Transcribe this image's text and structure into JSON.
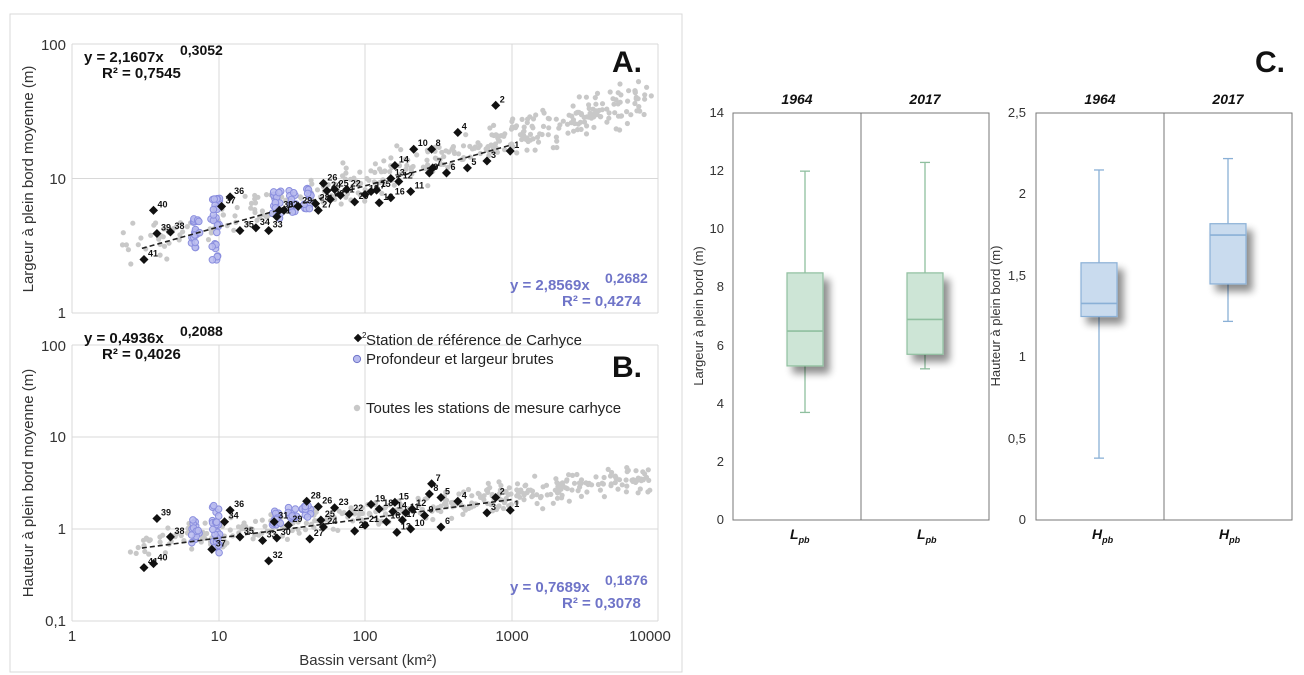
{
  "colors": {
    "reference": "#111111",
    "raw": "#8a8ede",
    "all": "#c8c8c8",
    "text_blue": "#6f74c8",
    "box_L": "#cde5d6",
    "box_L_stroke": "#8fbf9f",
    "box_H": "#c9dbee",
    "box_H_stroke": "#8ab0d6",
    "grid": "#d8d8d8"
  },
  "chart_data": [
    {
      "id": "A",
      "type": "scatter",
      "panel_label": "A.",
      "ylabel": "Largeur à plein bord moyenne (m)",
      "xscale": "log",
      "yscale": "log",
      "xlim": [
        1,
        10000
      ],
      "ylim": [
        1,
        100
      ],
      "yticks": [
        "1",
        "10",
        "100"
      ],
      "grid": true,
      "eq_black": {
        "line1": "y = 2,1607x",
        "exp": "0,3052",
        "line2": "R² = 0,7545"
      },
      "eq_blue": {
        "line1": "y = 2,8569x",
        "exp": "0,2682",
        "line2": "R² = 0,4274"
      },
      "fit": {
        "a": 2.1607,
        "b": 0.3052,
        "x_range": [
          3,
          1000
        ]
      },
      "reference_stations": [
        {
          "x": 780,
          "y": 35,
          "label": "2"
        },
        {
          "x": 980,
          "y": 16,
          "label": "1"
        },
        {
          "x": 680,
          "y": 13.5,
          "label": "3"
        },
        {
          "x": 430,
          "y": 22,
          "label": "4"
        },
        {
          "x": 500,
          "y": 12,
          "label": "5"
        },
        {
          "x": 360,
          "y": 11,
          "label": "6"
        },
        {
          "x": 290,
          "y": 12,
          "label": "7"
        },
        {
          "x": 285,
          "y": 16.5,
          "label": "8"
        },
        {
          "x": 275,
          "y": 11,
          "label": "9"
        },
        {
          "x": 215,
          "y": 16.5,
          "label": "10"
        },
        {
          "x": 205,
          "y": 8,
          "label": "11"
        },
        {
          "x": 170,
          "y": 9.5,
          "label": "12"
        },
        {
          "x": 150,
          "y": 10,
          "label": "13"
        },
        {
          "x": 160,
          "y": 12.5,
          "label": "14"
        },
        {
          "x": 120,
          "y": 8.2,
          "label": "15"
        },
        {
          "x": 150,
          "y": 7.2,
          "label": "16"
        },
        {
          "x": 110,
          "y": 8,
          "label": "17"
        },
        {
          "x": 125,
          "y": 6.6,
          "label": "18"
        },
        {
          "x": 100,
          "y": 7.6,
          "label": "19"
        },
        {
          "x": 85,
          "y": 6.7,
          "label": "20"
        },
        {
          "x": 68,
          "y": 7.5,
          "label": "21"
        },
        {
          "x": 75,
          "y": 8.3,
          "label": "22"
        },
        {
          "x": 58,
          "y": 7,
          "label": "23"
        },
        {
          "x": 55,
          "y": 8.1,
          "label": "24"
        },
        {
          "x": 62,
          "y": 8.3,
          "label": "25"
        },
        {
          "x": 52,
          "y": 9.2,
          "label": "26"
        },
        {
          "x": 48,
          "y": 5.8,
          "label": "27"
        },
        {
          "x": 46,
          "y": 6.5,
          "label": "28"
        },
        {
          "x": 35,
          "y": 6.2,
          "label": "29"
        },
        {
          "x": 26,
          "y": 5.8,
          "label": "30"
        },
        {
          "x": 25,
          "y": 5.2,
          "label": "31"
        },
        {
          "x": 28,
          "y": 5.8,
          "label": "32"
        },
        {
          "x": 22,
          "y": 4.1,
          "label": "33"
        },
        {
          "x": 18,
          "y": 4.3,
          "label": "34"
        },
        {
          "x": 14,
          "y": 4.1,
          "label": "35"
        },
        {
          "x": 12,
          "y": 7.3,
          "label": "36"
        },
        {
          "x": 10.5,
          "y": 6.2,
          "label": "37"
        },
        {
          "x": 4.7,
          "y": 4.0,
          "label": "38"
        },
        {
          "x": 3.8,
          "y": 3.9,
          "label": "39"
        },
        {
          "x": 3.6,
          "y": 5.8,
          "label": "40"
        },
        {
          "x": 3.1,
          "y": 2.5,
          "label": "41"
        }
      ]
    },
    {
      "id": "B",
      "type": "scatter",
      "panel_label": "B.",
      "xlabel": "Bassin versant (km²)",
      "ylabel": "Hauteur à plein bord moyenne (m)",
      "xscale": "log",
      "yscale": "log",
      "xlim": [
        1,
        10000
      ],
      "ylim": [
        0.1,
        100
      ],
      "xticks": [
        "1",
        "10",
        "100",
        "1000",
        "10000"
      ],
      "yticks": [
        "0,1",
        "1",
        "10",
        "100"
      ],
      "grid": true,
      "eq_black": {
        "line1": "y = 0,4936x",
        "exp": "0,2088",
        "line2": "R² = 0,4026"
      },
      "eq_blue": {
        "line1": "y = 0,7689x",
        "exp": "0,1876",
        "line2": "R² = 0,3078"
      },
      "fit": {
        "a": 0.4936,
        "b": 0.2088,
        "x_range": [
          3,
          1000
        ]
      },
      "legend": [
        {
          "key": "reference",
          "label": "Station de référence de Carhyce",
          "sub": "2"
        },
        {
          "key": "raw",
          "label": "Profondeur et largeur brutes"
        },
        {
          "key": "all",
          "label": "Toutes les stations de mesure carhyce"
        }
      ],
      "legend_position": "top-right",
      "reference_stations": [
        {
          "x": 980,
          "y": 1.6,
          "label": "1"
        },
        {
          "x": 780,
          "y": 2.2,
          "label": "2"
        },
        {
          "x": 680,
          "y": 1.5,
          "label": "3"
        },
        {
          "x": 430,
          "y": 2.0,
          "label": "4"
        },
        {
          "x": 330,
          "y": 2.2,
          "label": "5"
        },
        {
          "x": 330,
          "y": 1.05,
          "label": "6"
        },
        {
          "x": 285,
          "y": 3.1,
          "label": "7"
        },
        {
          "x": 275,
          "y": 2.4,
          "label": "8"
        },
        {
          "x": 255,
          "y": 1.4,
          "label": "9"
        },
        {
          "x": 205,
          "y": 1.0,
          "label": "10"
        },
        {
          "x": 190,
          "y": 1.5,
          "label": "11"
        },
        {
          "x": 210,
          "y": 1.65,
          "label": "12"
        },
        {
          "x": 165,
          "y": 0.92,
          "label": "13"
        },
        {
          "x": 155,
          "y": 1.55,
          "label": "14"
        },
        {
          "x": 160,
          "y": 1.95,
          "label": "15"
        },
        {
          "x": 140,
          "y": 1.2,
          "label": "16"
        },
        {
          "x": 180,
          "y": 1.25,
          "label": "17"
        },
        {
          "x": 125,
          "y": 1.65,
          "label": "18"
        },
        {
          "x": 110,
          "y": 1.85,
          "label": "19"
        },
        {
          "x": 85,
          "y": 0.95,
          "label": "20"
        },
        {
          "x": 100,
          "y": 1.1,
          "label": "21"
        },
        {
          "x": 78,
          "y": 1.45,
          "label": "22"
        },
        {
          "x": 62,
          "y": 1.7,
          "label": "23"
        },
        {
          "x": 52,
          "y": 1.05,
          "label": "24"
        },
        {
          "x": 50,
          "y": 1.25,
          "label": "25"
        },
        {
          "x": 48,
          "y": 1.75,
          "label": "26"
        },
        {
          "x": 42,
          "y": 0.78,
          "label": "27"
        },
        {
          "x": 40,
          "y": 2.0,
          "label": "28"
        },
        {
          "x": 30,
          "y": 1.1,
          "label": "29"
        },
        {
          "x": 25,
          "y": 0.8,
          "label": "30"
        },
        {
          "x": 24,
          "y": 1.2,
          "label": "31"
        },
        {
          "x": 22,
          "y": 0.45,
          "label": "32"
        },
        {
          "x": 20,
          "y": 0.75,
          "label": "33"
        },
        {
          "x": 11,
          "y": 1.2,
          "label": "34"
        },
        {
          "x": 14,
          "y": 0.82,
          "label": "35"
        },
        {
          "x": 12,
          "y": 1.6,
          "label": "36"
        },
        {
          "x": 9,
          "y": 0.6,
          "label": "37"
        },
        {
          "x": 4.7,
          "y": 0.82,
          "label": "38"
        },
        {
          "x": 3.8,
          "y": 1.3,
          "label": "39"
        },
        {
          "x": 3.6,
          "y": 0.42,
          "label": "40"
        },
        {
          "x": 3.1,
          "y": 0.38,
          "label": "41"
        }
      ]
    },
    {
      "id": "C1",
      "type": "box",
      "panel_label": "C.",
      "ylabel": "Largeur à plein bord (m)",
      "ylim": [
        0,
        14
      ],
      "yticks": [
        "0",
        "2",
        "4",
        "6",
        "8",
        "10",
        "12",
        "14"
      ],
      "groups": [
        {
          "title": "1964",
          "x_main": "L",
          "x_sub": "pb",
          "min": 3.7,
          "q1": 5.3,
          "median": 6.5,
          "q3": 8.5,
          "max": 12.0
        },
        {
          "title": "2017",
          "x_main": "L",
          "x_sub": "pb",
          "min": 5.2,
          "q1": 5.7,
          "median": 6.9,
          "q3": 8.5,
          "max": 12.3
        }
      ]
    },
    {
      "id": "C2",
      "type": "box",
      "ylabel": "Hauteur à plein bord (m)",
      "ylim": [
        0,
        2.5
      ],
      "yticks": [
        "0",
        "0,5",
        "1",
        "1,5",
        "2",
        "2,5"
      ],
      "groups": [
        {
          "title": "1964",
          "x_main": "H",
          "x_sub": "pb",
          "min": 0.38,
          "q1": 1.25,
          "median": 1.33,
          "q3": 1.58,
          "max": 2.15
        },
        {
          "title": "2017",
          "x_main": "H",
          "x_sub": "pb",
          "min": 1.22,
          "q1": 1.45,
          "median": 1.75,
          "q3": 1.82,
          "max": 2.22
        }
      ]
    }
  ]
}
